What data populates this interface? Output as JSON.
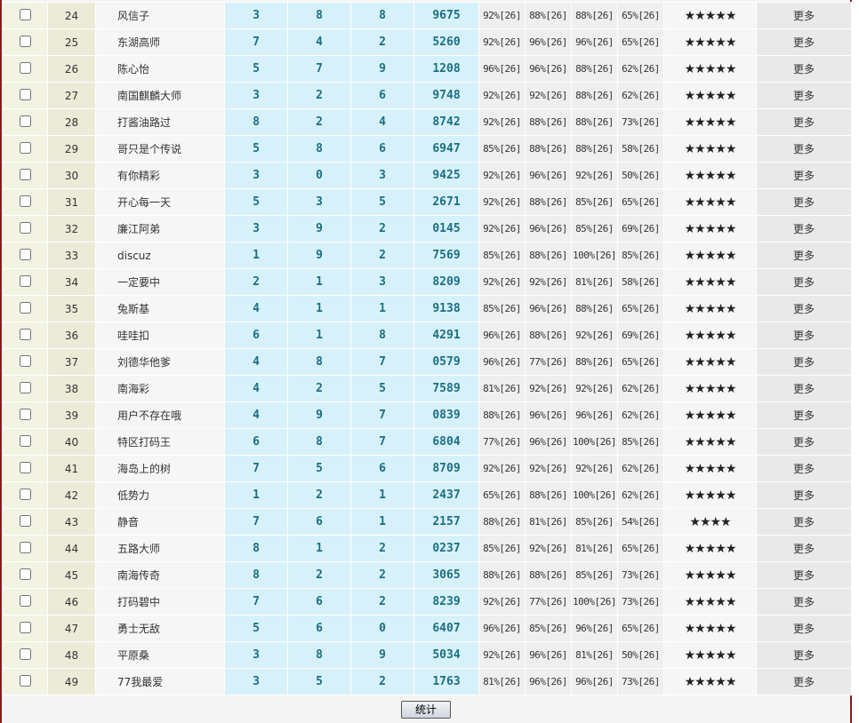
{
  "table": {
    "rows": [
      [
        "24",
        "风信子",
        "3",
        "8",
        "8",
        "9675",
        "92%[26]",
        "88%[26]",
        "88%[26]",
        "65%[26]",
        "★★★★★",
        "更多"
      ],
      [
        "25",
        "东湖高师",
        "7",
        "4",
        "2",
        "5260",
        "92%[26]",
        "96%[26]",
        "96%[26]",
        "65%[26]",
        "★★★★★",
        "更多"
      ],
      [
        "26",
        "陈心怡",
        "5",
        "7",
        "9",
        "1208",
        "96%[26]",
        "96%[26]",
        "88%[26]",
        "62%[26]",
        "★★★★★",
        "更多"
      ],
      [
        "27",
        "南国麒麟大师",
        "3",
        "2",
        "6",
        "9748",
        "92%[26]",
        "92%[26]",
        "88%[26]",
        "62%[26]",
        "★★★★★",
        "更多"
      ],
      [
        "28",
        "打酱油路过",
        "8",
        "2",
        "4",
        "8742",
        "92%[26]",
        "88%[26]",
        "88%[26]",
        "73%[26]",
        "★★★★★",
        "更多"
      ],
      [
        "29",
        "哥只是个传说",
        "5",
        "8",
        "6",
        "6947",
        "85%[26]",
        "88%[26]",
        "88%[26]",
        "58%[26]",
        "★★★★★",
        "更多"
      ],
      [
        "30",
        "有你精彩",
        "3",
        "0",
        "3",
        "9425",
        "92%[26]",
        "96%[26]",
        "92%[26]",
        "50%[26]",
        "★★★★★",
        "更多"
      ],
      [
        "31",
        "开心每一天",
        "5",
        "3",
        "5",
        "2671",
        "92%[26]",
        "88%[26]",
        "85%[26]",
        "65%[26]",
        "★★★★★",
        "更多"
      ],
      [
        "32",
        "廉江阿弟",
        "3",
        "9",
        "2",
        "0145",
        "92%[26]",
        "96%[26]",
        "85%[26]",
        "69%[26]",
        "★★★★★",
        "更多"
      ],
      [
        "33",
        "discuz",
        "1",
        "9",
        "2",
        "7569",
        "85%[26]",
        "88%[26]",
        "100%[26]",
        "85%[26]",
        "★★★★★",
        "更多"
      ],
      [
        "34",
        "一定要中",
        "2",
        "1",
        "3",
        "8209",
        "92%[26]",
        "92%[26]",
        "81%[26]",
        "58%[26]",
        "★★★★★",
        "更多"
      ],
      [
        "35",
        "兔斯基",
        "4",
        "1",
        "1",
        "9138",
        "85%[26]",
        "96%[26]",
        "88%[26]",
        "65%[26]",
        "★★★★★",
        "更多"
      ],
      [
        "36",
        "哇哇扣",
        "6",
        "1",
        "8",
        "4291",
        "96%[26]",
        "88%[26]",
        "92%[26]",
        "69%[26]",
        "★★★★★",
        "更多"
      ],
      [
        "37",
        "刘德华他爹",
        "4",
        "8",
        "7",
        "0579",
        "96%[26]",
        "77%[26]",
        "88%[26]",
        "65%[26]",
        "★★★★★",
        "更多"
      ],
      [
        "38",
        "南海彩",
        "4",
        "2",
        "5",
        "7589",
        "81%[26]",
        "92%[26]",
        "92%[26]",
        "62%[26]",
        "★★★★★",
        "更多"
      ],
      [
        "39",
        "用户不存在哦",
        "4",
        "9",
        "7",
        "0839",
        "88%[26]",
        "96%[26]",
        "96%[26]",
        "62%[26]",
        "★★★★★",
        "更多"
      ],
      [
        "40",
        "特区打码王",
        "6",
        "8",
        "7",
        "6804",
        "77%[26]",
        "96%[26]",
        "100%[26]",
        "85%[26]",
        "★★★★★",
        "更多"
      ],
      [
        "41",
        "海岛上的树",
        "7",
        "5",
        "6",
        "8709",
        "92%[26]",
        "92%[26]",
        "92%[26]",
        "62%[26]",
        "★★★★★",
        "更多"
      ],
      [
        "42",
        "低势力",
        "1",
        "2",
        "1",
        "2437",
        "65%[26]",
        "88%[26]",
        "100%[26]",
        "62%[26]",
        "★★★★★",
        "更多"
      ],
      [
        "43",
        "静音",
        "7",
        "6",
        "1",
        "2157",
        "88%[26]",
        "81%[26]",
        "85%[26]",
        "54%[26]",
        "★★★★",
        "更多"
      ],
      [
        "44",
        "五路大师",
        "8",
        "1",
        "2",
        "0237",
        "85%[26]",
        "92%[26]",
        "81%[26]",
        "65%[26]",
        "★★★★★",
        "更多"
      ],
      [
        "45",
        "南海传奇",
        "8",
        "2",
        "2",
        "3065",
        "88%[26]",
        "88%[26]",
        "85%[26]",
        "73%[26]",
        "★★★★★",
        "更多"
      ],
      [
        "46",
        "打码碧中",
        "7",
        "6",
        "2",
        "8239",
        "92%[26]",
        "77%[26]",
        "100%[26]",
        "73%[26]",
        "★★★★★",
        "更多"
      ],
      [
        "47",
        "勇士无敌",
        "5",
        "6",
        "0",
        "6407",
        "96%[26]",
        "85%[26]",
        "96%[26]",
        "65%[26]",
        "★★★★★",
        "更多"
      ],
      [
        "48",
        "平原桑",
        "3",
        "8",
        "9",
        "5034",
        "92%[26]",
        "96%[26]",
        "81%[26]",
        "50%[26]",
        "★★★★★",
        "更多"
      ],
      [
        "49",
        "77我最爱",
        "3",
        "5",
        "2",
        "1763",
        "81%[26]",
        "96%[26]",
        "96%[26]",
        "73%[26]",
        "★★★★★",
        "更多"
      ]
    ]
  },
  "button": {
    "label": "统计"
  }
}
